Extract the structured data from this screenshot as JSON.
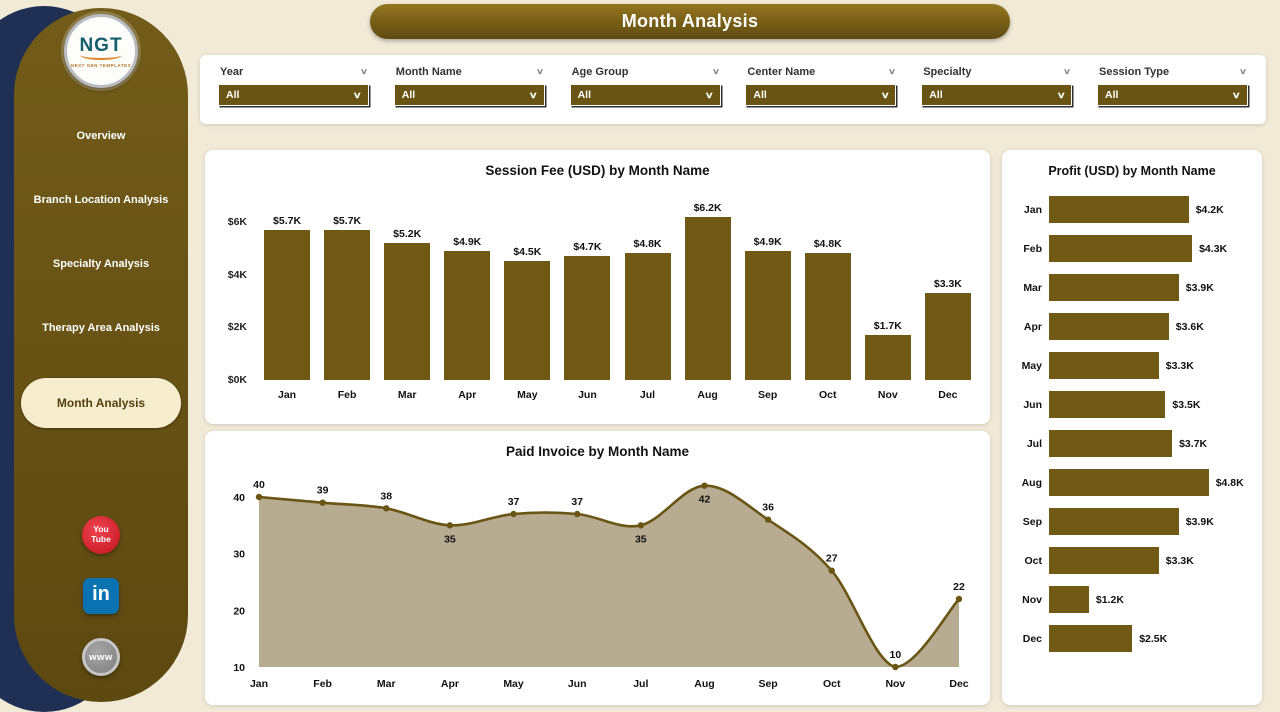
{
  "title": "Month Analysis",
  "logo": {
    "text": "NGT",
    "subtext": "NEXT GEN TEMPLATES"
  },
  "sidebar": {
    "items": [
      {
        "label": "Overview",
        "active": false
      },
      {
        "label": "Branch Location Analysis",
        "active": false
      },
      {
        "label": "Specialty Analysis",
        "active": false
      },
      {
        "label": "Therapy Area Analysis",
        "active": false
      },
      {
        "label": "Month Analysis",
        "active": true
      }
    ],
    "social": [
      {
        "name": "youtube",
        "lines": [
          "You",
          "Tube"
        ]
      },
      {
        "name": "linkedin",
        "label": "in"
      },
      {
        "name": "website",
        "label": "www"
      }
    ]
  },
  "filters": [
    {
      "label": "Year",
      "value": "All"
    },
    {
      "label": "Month Name",
      "value": "All"
    },
    {
      "label": "Age Group",
      "value": "All"
    },
    {
      "label": "Center Name",
      "value": "All"
    },
    {
      "label": "Specialty",
      "value": "All"
    },
    {
      "label": "Session Type",
      "value": "All"
    }
  ],
  "chart_data": [
    {
      "type": "bar",
      "title": "Session Fee (USD) by Month Name",
      "categories": [
        "Jan",
        "Feb",
        "Mar",
        "Apr",
        "May",
        "Jun",
        "Jul",
        "Aug",
        "Sep",
        "Oct",
        "Nov",
        "Dec"
      ],
      "values": [
        5700,
        5700,
        5200,
        4900,
        4500,
        4700,
        4800,
        6200,
        4900,
        4800,
        1700,
        3300
      ],
      "labels": [
        "$5.7K",
        "$5.7K",
        "$5.2K",
        "$4.9K",
        "$4.5K",
        "$4.7K",
        "$4.8K",
        "$6.2K",
        "$4.9K",
        "$4.8K",
        "$1.7K",
        "$3.3K"
      ],
      "yticks": [
        {
          "label": "$0K",
          "value": 0
        },
        {
          "label": "$2K",
          "value": 2000
        },
        {
          "label": "$4K",
          "value": 4000
        },
        {
          "label": "$6K",
          "value": 6000
        }
      ],
      "ylim": [
        0,
        6600
      ],
      "xlabel": "",
      "ylabel": "",
      "grid": false,
      "legend": "none"
    },
    {
      "type": "area",
      "title": "Paid Invoice by Month Name",
      "categories": [
        "Jan",
        "Feb",
        "Mar",
        "Apr",
        "May",
        "Jun",
        "Jul",
        "Aug",
        "Sep",
        "Oct",
        "Nov",
        "Dec"
      ],
      "values": [
        40,
        39,
        38,
        35,
        37,
        37,
        35,
        42,
        36,
        27,
        10,
        22
      ],
      "label_below_indices": [
        3,
        6,
        7
      ],
      "yticks": [
        10,
        20,
        30,
        40
      ],
      "ylim": [
        10,
        44
      ],
      "xlabel": "",
      "ylabel": "",
      "grid": false,
      "legend": "none"
    },
    {
      "type": "bar-horizontal",
      "title": "Profit (USD) by Month Name",
      "categories": [
        "Jan",
        "Feb",
        "Mar",
        "Apr",
        "May",
        "Jun",
        "Jul",
        "Aug",
        "Sep",
        "Oct",
        "Nov",
        "Dec"
      ],
      "values": [
        4200,
        4300,
        3900,
        3600,
        3300,
        3500,
        3700,
        4800,
        3900,
        3300,
        1200,
        2500
      ],
      "labels": [
        "$4.2K",
        "$4.3K",
        "$3.9K",
        "$3.6K",
        "$3.3K",
        "$3.5K",
        "$3.7K",
        "$4.8K",
        "$3.9K",
        "$3.3K",
        "$1.2K",
        "$2.5K"
      ],
      "xlim": [
        0,
        5200
      ],
      "xlabel": "",
      "ylabel": "",
      "grid": false,
      "legend": "none"
    }
  ],
  "colors": {
    "accent": "#6a5414",
    "bar": "#6f5915",
    "line": "#6b5514",
    "area_fill": "#b7ac92",
    "sidebar": "#6a5414",
    "navy_backdrop": "#1f3054",
    "active_nav_bg": "#f6ecce",
    "youtube_red": "#d41e2a",
    "linkedin_blue": "#0a72b1",
    "title_text": "#ffffff",
    "label_text": "#111111"
  }
}
